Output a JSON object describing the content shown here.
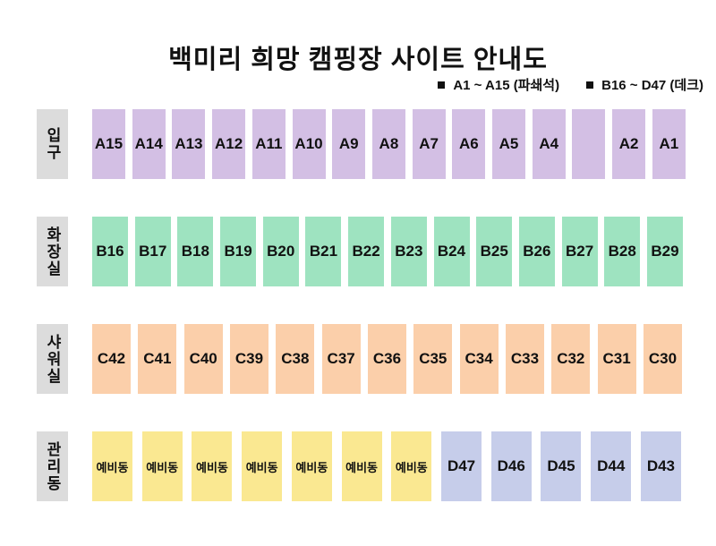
{
  "title": "백미리 희망 캠핑장 사이트 안내도",
  "legend": {
    "marker_color": "#111111",
    "items": [
      {
        "label": "A1 ~ A15 (파쇄석)"
      },
      {
        "label": "B16 ~ D47 (데크)"
      }
    ]
  },
  "colors": {
    "gravel_purple": "#d3bfe4",
    "deck_green": "#9ee3c0",
    "deck_peach": "#fbcfaa",
    "reserve_yellow": "#fae891",
    "deck_periwinkle": "#c6cdea",
    "row_label_gray": "#dcdcdc"
  },
  "rows": [
    {
      "label": "입구",
      "label_color": "#dcdcdc",
      "sites": [
        {
          "label": "A15",
          "color": "#d3bfe4"
        },
        {
          "label": "A14",
          "color": "#d3bfe4"
        },
        {
          "label": "A13",
          "color": "#d3bfe4"
        },
        {
          "label": "A12",
          "color": "#d3bfe4"
        },
        {
          "label": "A11",
          "color": "#d3bfe4"
        },
        {
          "label": "A10",
          "color": "#d3bfe4"
        },
        {
          "label": "A9",
          "color": "#d3bfe4"
        },
        {
          "label": "A8",
          "color": "#d3bfe4"
        },
        {
          "label": "A7",
          "color": "#d3bfe4"
        },
        {
          "label": "A6",
          "color": "#d3bfe4"
        },
        {
          "label": "A5",
          "color": "#d3bfe4"
        },
        {
          "label": "A4",
          "color": "#d3bfe4"
        },
        {
          "label": "",
          "color": "#d3bfe4"
        },
        {
          "label": "A2",
          "color": "#d3bfe4"
        },
        {
          "label": "A1",
          "color": "#d3bfe4"
        }
      ]
    },
    {
      "label": "화장실",
      "label_color": "#dcdcdc",
      "sites": [
        {
          "label": "B16",
          "color": "#9ee3c0"
        },
        {
          "label": "B17",
          "color": "#9ee3c0"
        },
        {
          "label": "B18",
          "color": "#9ee3c0"
        },
        {
          "label": "B19",
          "color": "#9ee3c0"
        },
        {
          "label": "B20",
          "color": "#9ee3c0"
        },
        {
          "label": "B21",
          "color": "#9ee3c0"
        },
        {
          "label": "B22",
          "color": "#9ee3c0"
        },
        {
          "label": "B23",
          "color": "#9ee3c0"
        },
        {
          "label": "B24",
          "color": "#9ee3c0"
        },
        {
          "label": "B25",
          "color": "#9ee3c0"
        },
        {
          "label": "B26",
          "color": "#9ee3c0"
        },
        {
          "label": "B27",
          "color": "#9ee3c0"
        },
        {
          "label": "B28",
          "color": "#9ee3c0"
        },
        {
          "label": "B29",
          "color": "#9ee3c0"
        }
      ]
    },
    {
      "label": "샤워실",
      "label_color": "#dcdcdc",
      "sites": [
        {
          "label": "C42",
          "color": "#fbcfaa"
        },
        {
          "label": "C41",
          "color": "#fbcfaa"
        },
        {
          "label": "C40",
          "color": "#fbcfaa"
        },
        {
          "label": "C39",
          "color": "#fbcfaa"
        },
        {
          "label": "C38",
          "color": "#fbcfaa"
        },
        {
          "label": "C37",
          "color": "#fbcfaa"
        },
        {
          "label": "C36",
          "color": "#fbcfaa"
        },
        {
          "label": "C35",
          "color": "#fbcfaa"
        },
        {
          "label": "C34",
          "color": "#fbcfaa"
        },
        {
          "label": "C33",
          "color": "#fbcfaa"
        },
        {
          "label": "C32",
          "color": "#fbcfaa"
        },
        {
          "label": "C31",
          "color": "#fbcfaa"
        },
        {
          "label": "C30",
          "color": "#fbcfaa"
        }
      ]
    },
    {
      "label": "관리동",
      "label_color": "#dcdcdc",
      "sites": [
        {
          "label": "예비동",
          "color": "#fae891"
        },
        {
          "label": "예비동",
          "color": "#fae891"
        },
        {
          "label": "예비동",
          "color": "#fae891"
        },
        {
          "label": "예비동",
          "color": "#fae891"
        },
        {
          "label": "예비동",
          "color": "#fae891"
        },
        {
          "label": "예비동",
          "color": "#fae891"
        },
        {
          "label": "예비동",
          "color": "#fae891"
        },
        {
          "label": "D47",
          "color": "#c6cdea"
        },
        {
          "label": "D46",
          "color": "#c6cdea"
        },
        {
          "label": "D45",
          "color": "#c6cdea"
        },
        {
          "label": "D44",
          "color": "#c6cdea"
        },
        {
          "label": "D43",
          "color": "#c6cdea"
        }
      ]
    }
  ]
}
